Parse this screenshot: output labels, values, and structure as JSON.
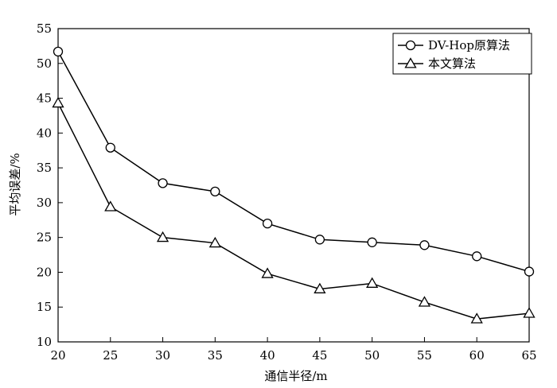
{
  "chart_data": {
    "type": "line",
    "xlabel": "通信半径/m",
    "ylabel": "平均误差/%",
    "xlim": [
      20,
      65
    ],
    "ylim": [
      10,
      55
    ],
    "x_ticks": [
      "20",
      "25",
      "30",
      "35",
      "40",
      "45",
      "50",
      "55",
      "60",
      "65"
    ],
    "y_ticks": [
      "10",
      "15",
      "20",
      "25",
      "30",
      "35",
      "40",
      "45",
      "50",
      "55"
    ],
    "grid": false,
    "legend_position": "top-right",
    "x": [
      20,
      25,
      30,
      35,
      40,
      45,
      50,
      55,
      60,
      65
    ],
    "series": [
      {
        "name": "DV-Hop原算法",
        "marker": "circle",
        "values": [
          51.7,
          37.9,
          32.8,
          31.6,
          27.0,
          24.7,
          24.3,
          23.9,
          22.3,
          20.1
        ]
      },
      {
        "name": "本文算法",
        "marker": "triangle",
        "values": [
          44.3,
          29.4,
          25.0,
          24.2,
          19.8,
          17.6,
          18.4,
          15.7,
          13.3,
          14.1
        ]
      }
    ]
  }
}
